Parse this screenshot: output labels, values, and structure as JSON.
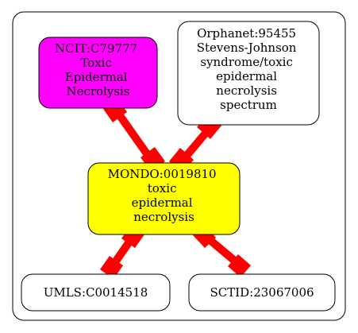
{
  "colors": {
    "background": "#ffffff",
    "cluster_border": "#000000",
    "edge": "#ff0000",
    "ncit_fill": "#ff00ff",
    "mondo_fill": "#ffff00",
    "plain_fill": "#ffffff"
  },
  "nodes": {
    "ncit": {
      "lines": [
        "NCIT:C79777",
        "Toxic",
        "Epidermal",
        "Necrolysis"
      ]
    },
    "orphanet": {
      "lines": [
        "Orphanet:95455",
        "Stevens-Johnson",
        "syndrome/toxic",
        "epidermal",
        "necrolysis",
        "spectrum"
      ]
    },
    "mondo": {
      "lines": [
        "MONDO:0019810",
        "toxic",
        "epidermal",
        "necrolysis"
      ]
    },
    "umls": {
      "lines": [
        "UMLS:C0014518"
      ]
    },
    "sctid": {
      "lines": [
        "SCTID:23067006"
      ]
    }
  },
  "edges": [
    {
      "from": "ncit",
      "to": "mondo"
    },
    {
      "from": "orphanet",
      "to": "mondo"
    },
    {
      "from": "mondo",
      "to": "umls"
    },
    {
      "from": "mondo",
      "to": "sctid"
    }
  ]
}
